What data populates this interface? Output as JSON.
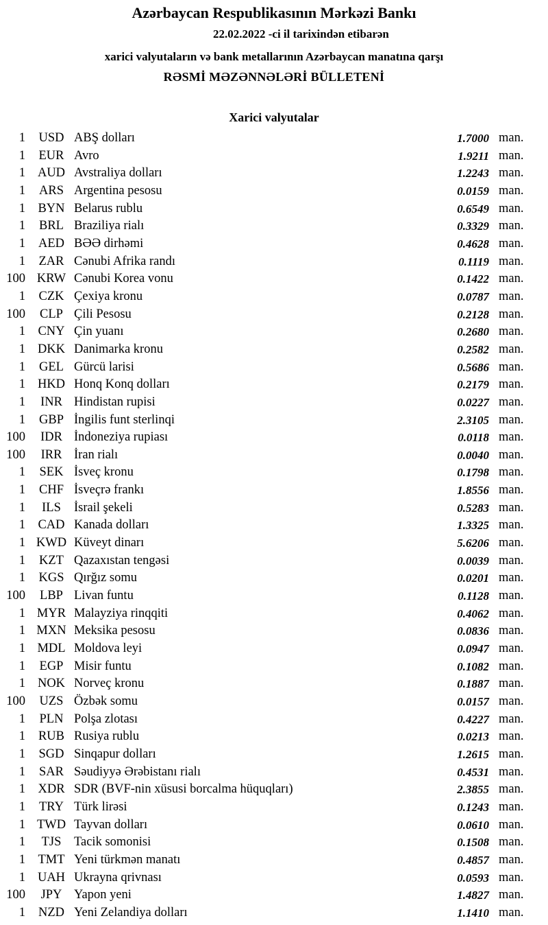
{
  "header": {
    "title": "Azərbaycan Respublikasının Mərkəzi Bankı",
    "date_line": "22.02.2022  -ci il tarixindən etibarən",
    "subtitle": "xarici valyutaların və bank metallarının Azərbaycan manatına qarşı",
    "bulletin": "RƏSMİ MƏZƏNNƏLƏRİ BÜLLETENİ"
  },
  "section_title": "Xarici valyutalar",
  "unit_label": "man.",
  "rates": [
    {
      "nominal": "1",
      "code": "USD",
      "name": "ABŞ dolları",
      "rate": "1.7000"
    },
    {
      "nominal": "1",
      "code": "EUR",
      "name": "Avro",
      "rate": "1.9211"
    },
    {
      "nominal": "1",
      "code": "AUD",
      "name": "Avstraliya dolları",
      "rate": "1.2243"
    },
    {
      "nominal": "1",
      "code": "ARS",
      "name": "Argentina pesosu",
      "rate": "0.0159"
    },
    {
      "nominal": "1",
      "code": "BYN",
      "name": "Belarus rublu",
      "rate": "0.6549"
    },
    {
      "nominal": "1",
      "code": "BRL",
      "name": "Braziliya rialı",
      "rate": "0.3329"
    },
    {
      "nominal": "1",
      "code": "AED",
      "name": "BƏƏ dirhəmi",
      "rate": "0.4628"
    },
    {
      "nominal": "1",
      "code": "ZAR",
      "name": "Cənubi Afrika randı",
      "rate": "0.1119"
    },
    {
      "nominal": "100",
      "code": "KRW",
      "name": "Cənubi Korea vonu",
      "rate": "0.1422"
    },
    {
      "nominal": "1",
      "code": "CZK",
      "name": "Çexiya kronu",
      "rate": "0.0787"
    },
    {
      "nominal": "100",
      "code": "CLP",
      "name": "Çili Pesosu",
      "rate": "0.2128"
    },
    {
      "nominal": "1",
      "code": "CNY",
      "name": "Çin yuanı",
      "rate": "0.2680"
    },
    {
      "nominal": "1",
      "code": "DKK",
      "name": "Danimarka kronu",
      "rate": "0.2582"
    },
    {
      "nominal": "1",
      "code": "GEL",
      "name": "Gürcü larisi",
      "rate": "0.5686"
    },
    {
      "nominal": "1",
      "code": "HKD",
      "name": "Honq Konq dolları",
      "rate": "0.2179"
    },
    {
      "nominal": "1",
      "code": "INR",
      "name": "Hindistan rupisi",
      "rate": "0.0227"
    },
    {
      "nominal": "1",
      "code": "GBP",
      "name": "İngilis funt sterlinqi",
      "rate": "2.3105"
    },
    {
      "nominal": "100",
      "code": "IDR",
      "name": "İndoneziya rupiası",
      "rate": "0.0118"
    },
    {
      "nominal": "100",
      "code": "IRR",
      "name": "İran rialı",
      "rate": "0.0040"
    },
    {
      "nominal": "1",
      "code": "SEK",
      "name": "İsveç kronu",
      "rate": "0.1798"
    },
    {
      "nominal": "1",
      "code": "CHF",
      "name": "İsveçrə frankı",
      "rate": "1.8556"
    },
    {
      "nominal": "1",
      "code": "ILS",
      "name": "İsrail şekeli",
      "rate": "0.5283"
    },
    {
      "nominal": "1",
      "code": "CAD",
      "name": "Kanada dolları",
      "rate": "1.3325"
    },
    {
      "nominal": "1",
      "code": "KWD",
      "name": "Küveyt dinarı",
      "rate": "5.6206"
    },
    {
      "nominal": "1",
      "code": "KZT",
      "name": "Qazaxıstan tengəsi",
      "rate": "0.0039"
    },
    {
      "nominal": "1",
      "code": "KGS",
      "name": "Qırğız somu",
      "rate": "0.0201"
    },
    {
      "nominal": "100",
      "code": "LBP",
      "name": "Livan funtu",
      "rate": "0.1128"
    },
    {
      "nominal": "1",
      "code": "MYR",
      "name": "Malayziya rinqqiti",
      "rate": "0.4062"
    },
    {
      "nominal": "1",
      "code": "MXN",
      "name": "Meksika pesosu",
      "rate": "0.0836"
    },
    {
      "nominal": "1",
      "code": "MDL",
      "name": "Moldova leyi",
      "rate": "0.0947"
    },
    {
      "nominal": "1",
      "code": "EGP",
      "name": "Misir funtu",
      "rate": "0.1082"
    },
    {
      "nominal": "1",
      "code": "NOK",
      "name": "Norveç kronu",
      "rate": "0.1887"
    },
    {
      "nominal": "100",
      "code": "UZS",
      "name": "Özbək somu",
      "rate": "0.0157"
    },
    {
      "nominal": "1",
      "code": "PLN",
      "name": "Polşa zlotası",
      "rate": "0.4227"
    },
    {
      "nominal": "1",
      "code": "RUB",
      "name": "Rusiya rublu",
      "rate": "0.0213"
    },
    {
      "nominal": "1",
      "code": "SGD",
      "name": "Sinqapur dolları",
      "rate": "1.2615"
    },
    {
      "nominal": "1",
      "code": "SAR",
      "name": "Səudiyyə Ərəbistanı rialı",
      "rate": "0.4531"
    },
    {
      "nominal": "1",
      "code": "XDR",
      "name": "SDR (BVF-nin xüsusi borcalma hüquqları)",
      "rate": "2.3855"
    },
    {
      "nominal": "1",
      "code": "TRY",
      "name": "Türk lirəsi",
      "rate": "0.1243"
    },
    {
      "nominal": "1",
      "code": "TWD",
      "name": "Tayvan dolları",
      "rate": "0.0610"
    },
    {
      "nominal": "1",
      "code": "TJS",
      "name": "Tacik somonisi",
      "rate": "0.1508"
    },
    {
      "nominal": "1",
      "code": "TMT",
      "name": "Yeni türkmən manatı",
      "rate": "0.4857"
    },
    {
      "nominal": "1",
      "code": "UAH",
      "name": "Ukrayna qrivnası",
      "rate": "0.0593"
    },
    {
      "nominal": "100",
      "code": "JPY",
      "name": "Yapon yeni",
      "rate": "1.4827"
    },
    {
      "nominal": "1",
      "code": "NZD",
      "name": "Yeni Zelandiya dolları",
      "rate": "1.1410"
    }
  ]
}
